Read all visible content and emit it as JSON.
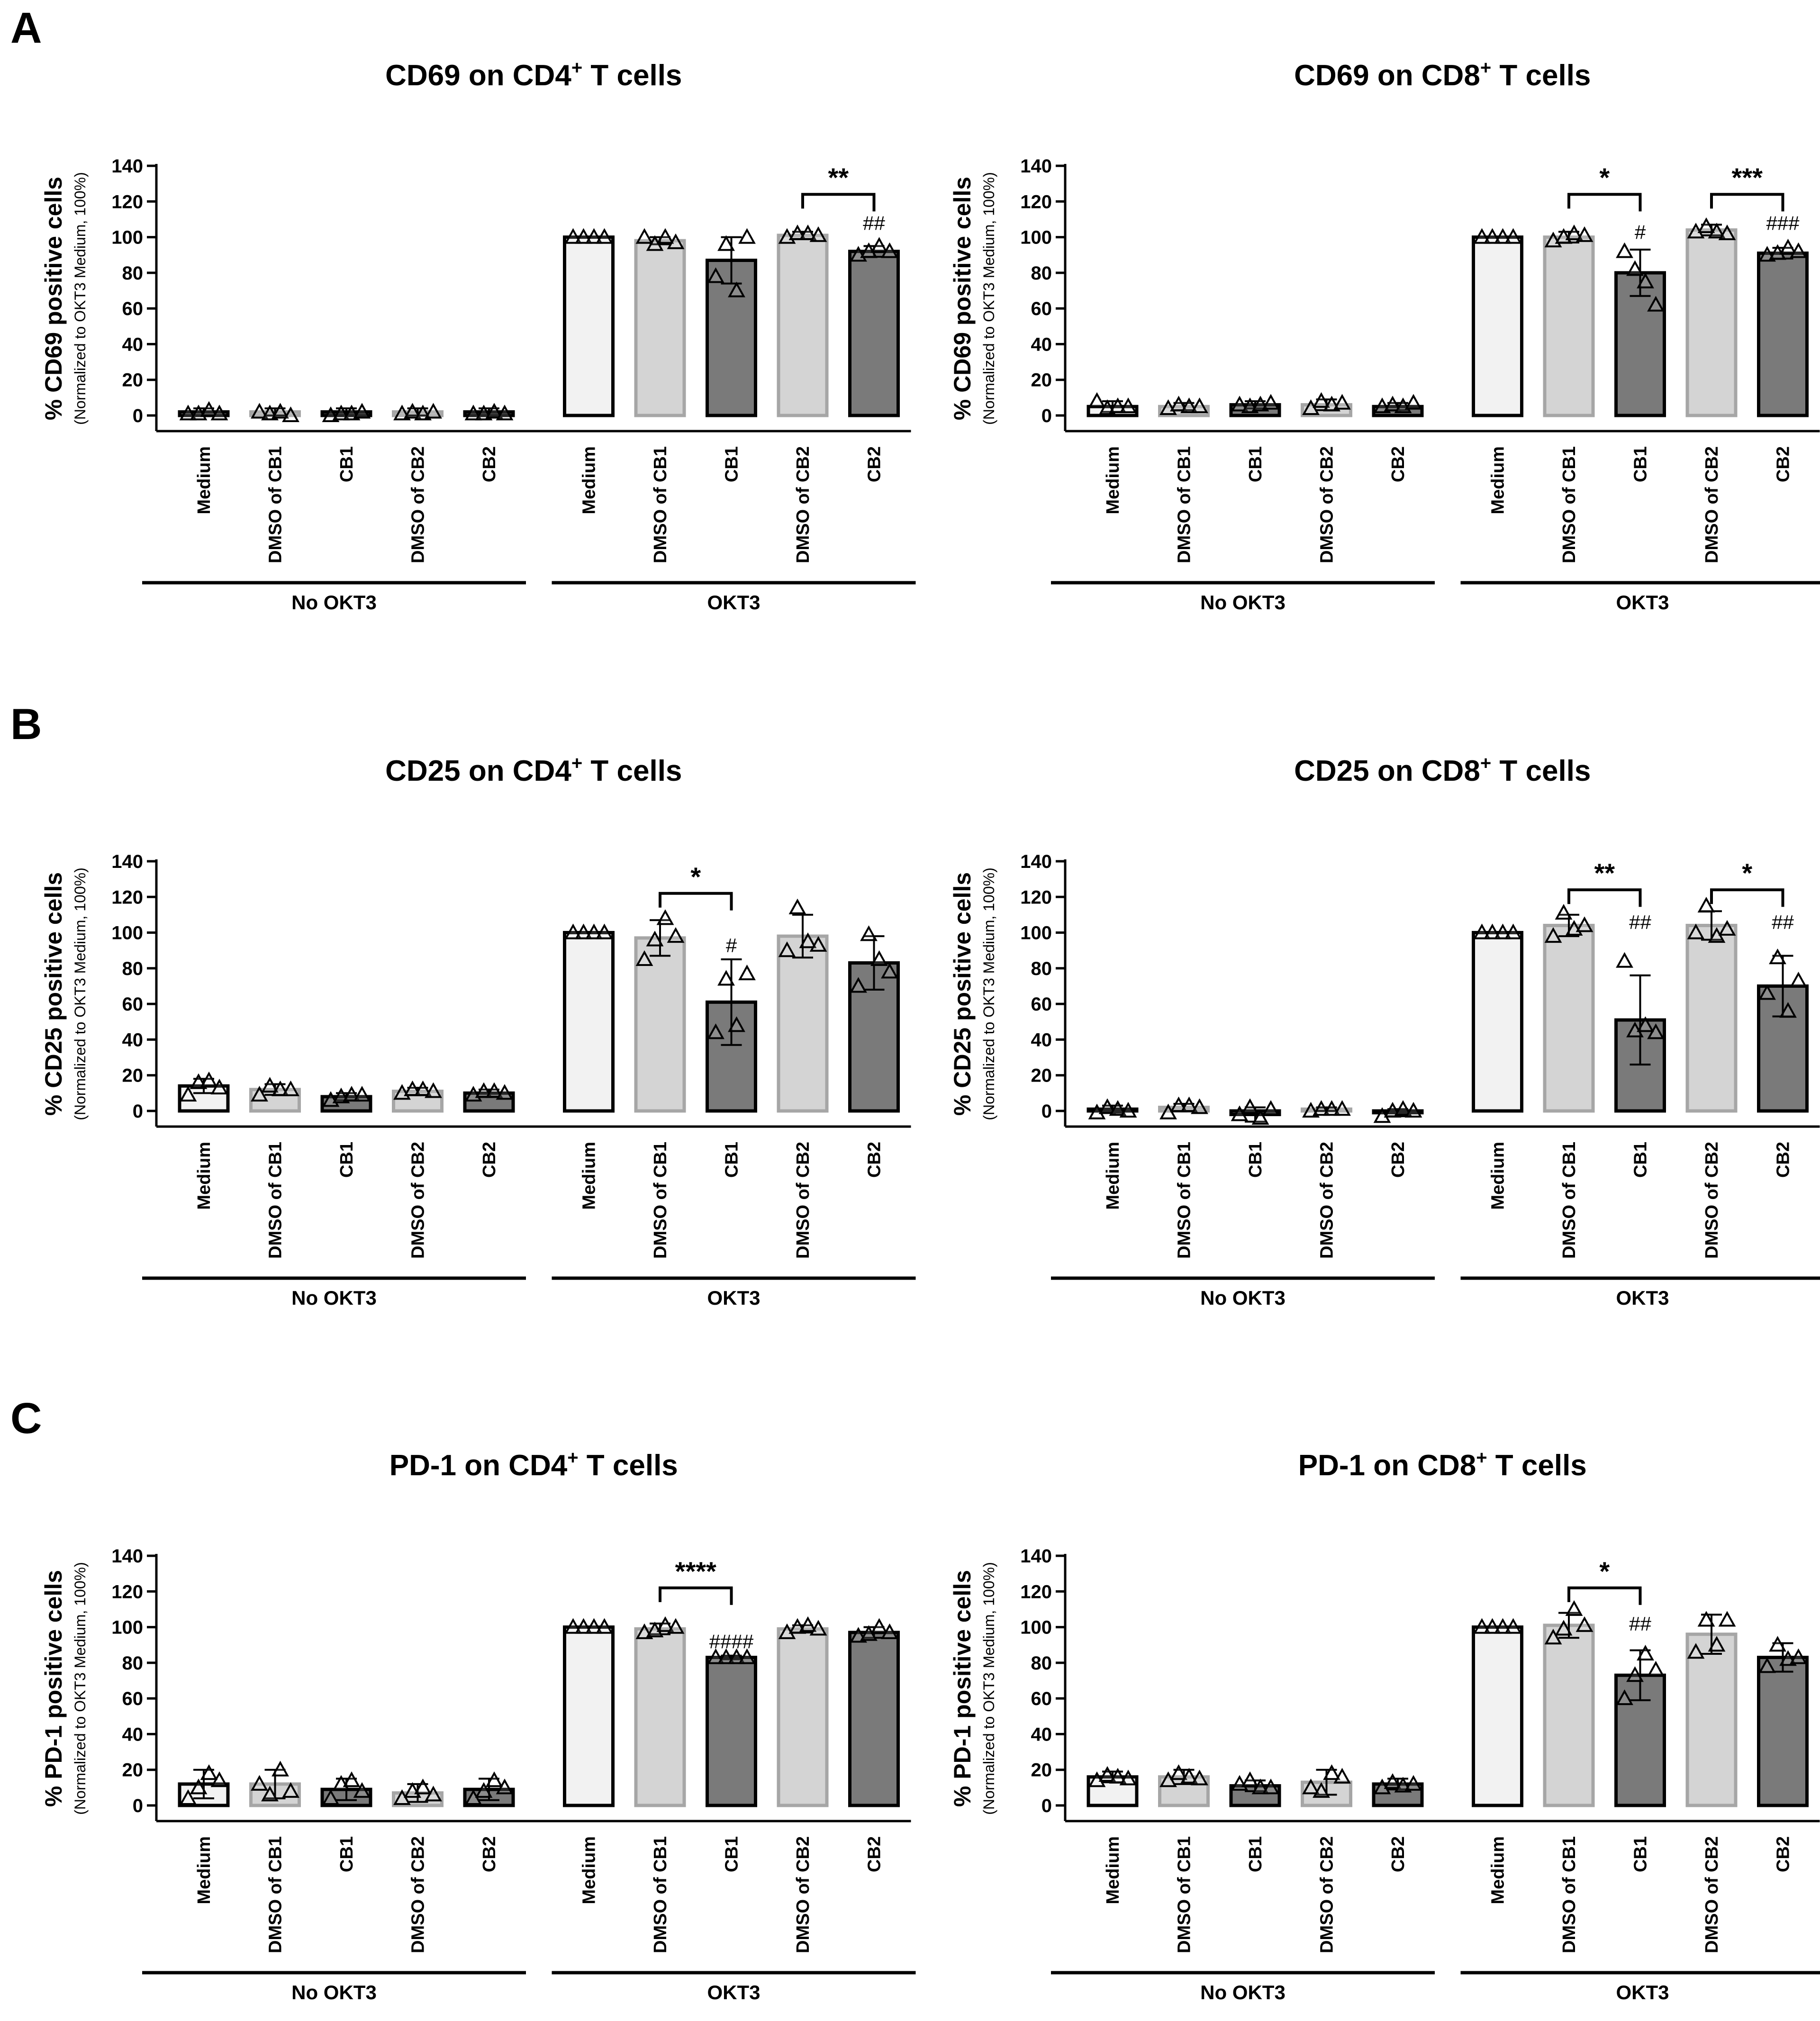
{
  "figure": {
    "panel_labels": [
      "A",
      "B",
      "C"
    ],
    "bar_colors": {
      "Medium": "#f2f2f2",
      "DMSO of CB1": "#d4d4d4",
      "CB1": "#7a7a7a",
      "DMSO of CB2": "#d4d4d4",
      "CB2": "#7a7a7a"
    },
    "edge_colors": {
      "Medium": "#000000",
      "DMSO of CB1": "#a6a6a6",
      "CB1": "#000000",
      "DMSO of CB2": "#a6a6a6",
      "CB2": "#000000"
    }
  },
  "chart_data": [
    {
      "type": "bar",
      "panel": "A",
      "title_main": "CD69 on CD4",
      "title_sup": "+",
      "title_tail": " T cells",
      "ylabel": "% CD69 positive cells",
      "ylabel_sub": "(Normalized to OKT3 Medium, 100%)",
      "ylim": [
        0,
        140
      ],
      "yticks": [
        "0",
        "20",
        "40",
        "60",
        "80",
        "100",
        "120",
        "140"
      ],
      "categories": [
        "Medium",
        "DMSO of CB1",
        "CB1",
        "DMSO of CB2",
        "CB2",
        "Medium",
        "DMSO of CB1",
        "CB1",
        "DMSO of CB2",
        "CB2"
      ],
      "groups": [
        "No OKT3",
        "OKT3"
      ],
      "values": [
        2,
        2,
        2,
        2,
        2,
        100,
        98,
        87,
        101,
        92
      ],
      "errors": [
        2,
        2,
        2,
        2,
        2,
        0,
        2,
        13,
        2,
        3
      ],
      "points": [
        [
          1,
          1,
          3,
          1
        ],
        [
          2,
          1,
          2,
          0
        ],
        [
          0,
          1,
          1,
          2
        ],
        [
          1,
          2,
          1,
          2
        ],
        [
          1,
          1,
          2,
          1
        ],
        [
          100,
          100,
          100,
          100
        ],
        [
          100,
          96,
          100,
          97
        ],
        [
          78,
          96,
          70,
          100
        ],
        [
          100,
          102,
          102,
          101
        ],
        [
          90,
          92,
          95,
          92
        ]
      ],
      "comparisons": [
        {
          "from": 8,
          "to": 9,
          "label": "**",
          "y": 124
        }
      ],
      "hashes": [
        {
          "bar": 9,
          "label": "##",
          "y": 104
        }
      ]
    },
    {
      "type": "bar",
      "panel": "A",
      "title_main": "CD69 on CD8",
      "title_sup": "+",
      "title_tail": " T cells",
      "ylabel": "% CD69 positive cells",
      "ylabel_sub": "(Normalized to OKT3 Medium, 100%)",
      "ylim": [
        0,
        140
      ],
      "yticks": [
        "0",
        "20",
        "40",
        "60",
        "80",
        "100",
        "120",
        "140"
      ],
      "categories": [
        "Medium",
        "DMSO of CB1",
        "CB1",
        "DMSO of CB2",
        "CB2",
        "Medium",
        "DMSO of CB1",
        "CB1",
        "DMSO of CB2",
        "CB2"
      ],
      "groups": [
        "No OKT3",
        "OKT3"
      ],
      "values": [
        5,
        5,
        6,
        6,
        5,
        100,
        100,
        80,
        104,
        91
      ],
      "errors": [
        3,
        2,
        2,
        3,
        2,
        0,
        3,
        13,
        3,
        3
      ],
      "points": [
        [
          8,
          4,
          5,
          5
        ],
        [
          4,
          6,
          5,
          5
        ],
        [
          6,
          5,
          6,
          7
        ],
        [
          4,
          8,
          6,
          7
        ],
        [
          5,
          6,
          5,
          7
        ],
        [
          100,
          100,
          100,
          100
        ],
        [
          98,
          100,
          102,
          101
        ],
        [
          92,
          82,
          75,
          62
        ],
        [
          103,
          106,
          103,
          102
        ],
        [
          90,
          91,
          94,
          92
        ]
      ],
      "comparisons": [
        {
          "from": 6,
          "to": 7,
          "label": "*",
          "y": 124
        },
        {
          "from": 8,
          "to": 9,
          "label": "***",
          "y": 124
        }
      ],
      "hashes": [
        {
          "bar": 7,
          "label": "#",
          "y": 99
        },
        {
          "bar": 9,
          "label": "###",
          "y": 104
        }
      ]
    },
    {
      "type": "bar",
      "panel": "B",
      "title_main": "CD25 on CD4",
      "title_sup": "+",
      "title_tail": " T cells",
      "ylabel": "% CD25 positive cells",
      "ylabel_sub": "(Normalized to OKT3 Medium, 100%)",
      "ylim": [
        0,
        140
      ],
      "yticks": [
        "0",
        "20",
        "40",
        "60",
        "80",
        "100",
        "120",
        "140"
      ],
      "categories": [
        "Medium",
        "DMSO of CB1",
        "CB1",
        "DMSO of CB2",
        "CB2",
        "Medium",
        "DMSO of CB1",
        "CB1",
        "DMSO of CB2",
        "CB2"
      ],
      "groups": [
        "No OKT3",
        "OKT3"
      ],
      "values": [
        14,
        12,
        8,
        11,
        10,
        100,
        97,
        61,
        98,
        83
      ],
      "errors": [
        4,
        3,
        2,
        2,
        2,
        0,
        10,
        24,
        12,
        15
      ],
      "points": [
        [
          9,
          16,
          17,
          13
        ],
        [
          9,
          14,
          12,
          12
        ],
        [
          6,
          8,
          9,
          9
        ],
        [
          10,
          12,
          12,
          11
        ],
        [
          9,
          11,
          11,
          10
        ],
        [
          100,
          100,
          100,
          100
        ],
        [
          85,
          96,
          108,
          98
        ],
        [
          44,
          74,
          48,
          77
        ],
        [
          90,
          114,
          95,
          93
        ],
        [
          70,
          99,
          85,
          78
        ]
      ],
      "comparisons": [
        {
          "from": 6,
          "to": 7,
          "label": "*",
          "y": 122
        }
      ],
      "hashes": [
        {
          "bar": 7,
          "label": "#",
          "y": 89
        }
      ]
    },
    {
      "type": "bar",
      "panel": "B",
      "title_main": "CD25 on CD8",
      "title_sup": "+",
      "title_tail": " T cells",
      "ylabel": "% CD25 positive cells",
      "ylabel_sub": "(Normalized to OKT3 Medium, 100%)",
      "ylim": [
        0,
        140
      ],
      "yticks": [
        "0",
        "20",
        "40",
        "60",
        "80",
        "100",
        "120",
        "140"
      ],
      "categories": [
        "Medium",
        "DMSO of CB1",
        "CB1",
        "DMSO of CB2",
        "CB2",
        "Medium",
        "DMSO of CB1",
        "CB1",
        "DMSO of CB2",
        "CB2"
      ],
      "groups": [
        "No OKT3",
        "OKT3"
      ],
      "values": [
        1,
        2,
        -2,
        1,
        -1,
        100,
        104,
        51,
        104,
        70
      ],
      "errors": [
        2,
        2,
        4,
        1,
        2,
        0,
        6,
        25,
        8,
        17
      ],
      "points": [
        [
          -1,
          2,
          1,
          0
        ],
        [
          -1,
          3,
          3,
          2
        ],
        [
          -2,
          2,
          -4,
          1
        ],
        [
          0,
          1,
          1,
          1
        ],
        [
          -3,
          0,
          1,
          0
        ],
        [
          100,
          100,
          100,
          100
        ],
        [
          98,
          111,
          102,
          104
        ],
        [
          84,
          45,
          48,
          44
        ],
        [
          100,
          115,
          98,
          102
        ],
        [
          66,
          86,
          56,
          73
        ]
      ],
      "comparisons": [
        {
          "from": 6,
          "to": 7,
          "label": "**",
          "y": 124
        },
        {
          "from": 8,
          "to": 9,
          "label": "*",
          "y": 124
        }
      ],
      "hashes": [
        {
          "bar": 7,
          "label": "##",
          "y": 102
        },
        {
          "bar": 9,
          "label": "##",
          "y": 102
        }
      ]
    },
    {
      "type": "bar",
      "panel": "C",
      "title_main": "PD-1 on CD4",
      "title_sup": "+",
      "title_tail": " T cells",
      "ylabel": "% PD-1 positive cells",
      "ylabel_sub": "(Normalized to OKT3 Medium, 100%)",
      "ylim": [
        0,
        140
      ],
      "yticks": [
        "0",
        "20",
        "40",
        "60",
        "80",
        "100",
        "120",
        "140"
      ],
      "categories": [
        "Medium",
        "DMSO of CB1",
        "CB1",
        "DMSO of CB2",
        "CB2",
        "Medium",
        "DMSO of CB1",
        "CB1",
        "DMSO of CB2",
        "CB2"
      ],
      "groups": [
        "No OKT3",
        "OKT3"
      ],
      "values": [
        12,
        12,
        9,
        7,
        9,
        100,
        99,
        83,
        99,
        97
      ],
      "errors": [
        8,
        8,
        6,
        5,
        6,
        0,
        3,
        1,
        2,
        3
      ],
      "points": [
        [
          4,
          10,
          18,
          14
        ],
        [
          12,
          6,
          20,
          8
        ],
        [
          4,
          12,
          14,
          8
        ],
        [
          4,
          8,
          10,
          6
        ],
        [
          4,
          8,
          14,
          10
        ],
        [
          100,
          100,
          100,
          100
        ],
        [
          97,
          98,
          101,
          100
        ],
        [
          83,
          83,
          83,
          83
        ],
        [
          97,
          100,
          101,
          99
        ],
        [
          95,
          96,
          100,
          97
        ]
      ],
      "comparisons": [
        {
          "from": 6,
          "to": 7,
          "label": "****",
          "y": 122
        }
      ],
      "hashes": [
        {
          "bar": 7,
          "label": "####",
          "y": 88
        }
      ]
    },
    {
      "type": "bar",
      "panel": "C",
      "title_main": "PD-1 on CD8",
      "title_sup": "+",
      "title_tail": " T cells",
      "ylabel": "% PD-1 positive cells",
      "ylabel_sub": "(Normalized to OKT3 Medium, 100%)",
      "ylim": [
        0,
        140
      ],
      "yticks": [
        "0",
        "20",
        "40",
        "60",
        "80",
        "100",
        "120",
        "140"
      ],
      "categories": [
        "Medium",
        "DMSO of CB1",
        "CB1",
        "DMSO of CB2",
        "CB2",
        "Medium",
        "DMSO of CB1",
        "CB1",
        "DMSO of CB2",
        "CB2"
      ],
      "groups": [
        "No OKT3",
        "OKT3"
      ],
      "values": [
        16,
        16,
        11,
        13,
        12,
        100,
        101,
        73,
        96,
        83
      ],
      "errors": [
        3,
        4,
        3,
        7,
        3,
        0,
        7,
        14,
        11,
        8
      ],
      "points": [
        [
          14,
          17,
          16,
          15
        ],
        [
          14,
          18,
          16,
          15
        ],
        [
          12,
          14,
          10,
          10
        ],
        [
          10,
          8,
          18,
          16
        ],
        [
          10,
          13,
          11,
          12
        ],
        [
          100,
          100,
          100,
          100
        ],
        [
          94,
          99,
          110,
          101
        ],
        [
          60,
          73,
          85,
          76
        ],
        [
          86,
          104,
          90,
          104
        ],
        [
          78,
          90,
          82,
          83
        ]
      ],
      "comparisons": [
        {
          "from": 6,
          "to": 7,
          "label": "*",
          "y": 122
        }
      ],
      "hashes": [
        {
          "bar": 7,
          "label": "##",
          "y": 98
        }
      ]
    }
  ]
}
